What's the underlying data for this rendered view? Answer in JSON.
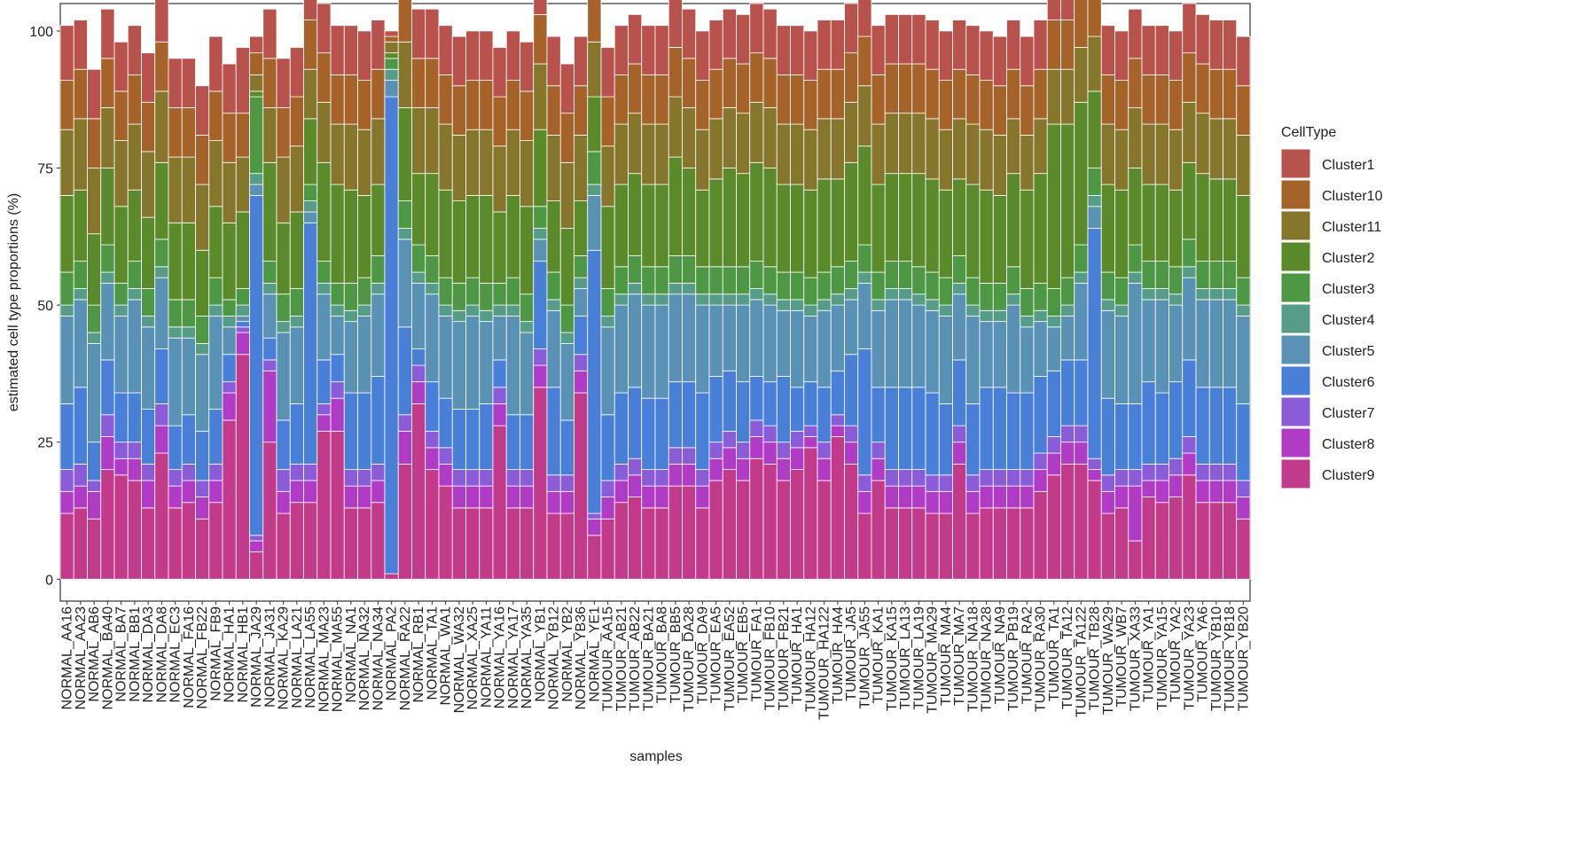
{
  "chart_data": {
    "type": "stacked-bar",
    "xlabel": "samples",
    "ylabel": "estimated cell type proportions (%)",
    "legend_title": "CellType",
    "legend": "right",
    "ylim": [
      -4,
      105
    ],
    "yticks": [
      0,
      25,
      50,
      75,
      100
    ],
    "categories": [
      "NORMAL_AA16",
      "NORMAL_AA23",
      "NORMAL_AB6",
      "NORMAL_BA40",
      "NORMAL_BA7",
      "NORMAL_BB1",
      "NORMAL_DA3",
      "NORMAL_DA8",
      "NORMAL_EC3",
      "NORMAL_FA16",
      "NORMAL_FB22",
      "NORMAL_FB9",
      "NORMAL_HA1",
      "NORMAL_HB1",
      "NORMAL_JA29",
      "NORMAL_JA31",
      "NORMAL_KA29",
      "NORMAL_LA21",
      "NORMAL_LA55",
      "NORMAL_MA23",
      "NORMAL_MA55",
      "NORMAL_NA1",
      "NORMAL_NA32",
      "NORMAL_NA34",
      "NORMAL_PA2",
      "NORMAL_RA22",
      "NORMAL_RB1",
      "NORMAL_TA1",
      "NORMAL_WA1",
      "NORMAL_WA32",
      "NORMAL_XA25",
      "NORMAL_YA11",
      "NORMAL_YA16",
      "NORMAL_YA17",
      "NORMAL_YA35",
      "NORMAL_YB1",
      "NORMAL_YB12",
      "NORMAL_YB2",
      "NORMAL_YB36",
      "NORMAL_YE1",
      "TUMOUR_AA15",
      "TUMOUR_AB21",
      "TUMOUR_AB22",
      "TUMOUR_BA21",
      "TUMOUR_BA8",
      "TUMOUR_BB5",
      "TUMOUR_DA28",
      "TUMOUR_DA9",
      "TUMOUR_EA5",
      "TUMOUR_EA52",
      "TUMOUR_EB5",
      "TUMOUR_FA1",
      "TUMOUR_FB10",
      "TUMOUR_FB21",
      "TUMOUR_HA1",
      "TUMOUR_HA12",
      "TUMOUR_HA122",
      "TUMOUR_HA4",
      "TUMOUR_JA5",
      "TUMOUR_JA55",
      "TUMOUR_KA1",
      "TUMOUR_KA15",
      "TUMOUR_LA13",
      "TUMOUR_LA19",
      "TUMOUR_MA29",
      "TUMOUR_MA4",
      "TUMOUR_MA7",
      "TUMOUR_NA18",
      "TUMOUR_NA28",
      "TUMOUR_NA9",
      "TUMOUR_PB19",
      "TUMOUR_RA2",
      "TUMOUR_RA30",
      "TUMOUR_TA1",
      "TUMOUR_TA12",
      "TUMOUR_TA122",
      "TUMOUR_TB28",
      "TUMOUR_WA29",
      "TUMOUR_WB7",
      "TUMOUR_XA33",
      "TUMOUR_YA1",
      "TUMOUR_YA15",
      "TUMOUR_YA2",
      "TUMOUR_YA23",
      "TUMOUR_YA6",
      "TUMOUR_YB10",
      "TUMOUR_YB18",
      "TUMOUR_YB20"
    ],
    "series": [
      {
        "name": "Cluster1",
        "color": "#b8524c",
        "values": [
          10,
          9,
          9,
          9,
          9,
          9,
          9,
          9,
          9,
          9,
          9,
          10,
          9,
          12,
          3,
          9,
          9,
          9,
          9,
          9,
          9,
          9,
          9,
          9,
          1,
          9,
          9,
          9,
          9,
          9,
          9,
          9,
          9,
          9,
          9,
          9,
          9,
          9,
          9,
          9,
          9,
          9,
          9,
          9,
          9,
          9,
          9,
          9,
          9,
          9,
          9,
          9,
          9,
          9,
          9,
          9,
          9,
          9,
          9,
          9,
          9,
          9,
          9,
          9,
          9,
          9,
          9,
          9,
          9,
          9,
          9,
          9,
          9,
          9,
          9,
          9,
          9,
          9,
          9,
          9,
          9,
          9,
          9,
          9,
          9,
          9,
          9,
          9
        ]
      },
      {
        "name": "Cluster10",
        "color": "#a5632a",
        "values": [
          9,
          9,
          9,
          9,
          9,
          9,
          9,
          9,
          9,
          9,
          9,
          9,
          9,
          8,
          4,
          9,
          9,
          9,
          9,
          9,
          9,
          9,
          9,
          9,
          1,
          9,
          9,
          9,
          9,
          9,
          9,
          9,
          9,
          9,
          9,
          9,
          9,
          9,
          9,
          9,
          9,
          9,
          9,
          9,
          9,
          9,
          9,
          9,
          9,
          9,
          9,
          9,
          9,
          9,
          9,
          9,
          9,
          9,
          9,
          9,
          9,
          9,
          9,
          9,
          9,
          9,
          9,
          9,
          9,
          9,
          9,
          9,
          9,
          9,
          9,
          9,
          9,
          9,
          9,
          9,
          9,
          9,
          9,
          9,
          9,
          9,
          9,
          9
        ]
      },
      {
        "name": "Cluster11",
        "color": "#86762c",
        "values": [
          12,
          13,
          12,
          11,
          12,
          12,
          12,
          13,
          12,
          12,
          12,
          12,
          11,
          10,
          3,
          10,
          12,
          12,
          9,
          11,
          11,
          12,
          12,
          12,
          2,
          12,
          12,
          12,
          12,
          12,
          12,
          12,
          12,
          12,
          12,
          12,
          12,
          12,
          12,
          10,
          11,
          11,
          11,
          11,
          11,
          11,
          11,
          11,
          11,
          11,
          11,
          11,
          11,
          11,
          11,
          11,
          11,
          11,
          11,
          11,
          11,
          11,
          11,
          11,
          11,
          11,
          11,
          11,
          11,
          11,
          10,
          10,
          10,
          10,
          10,
          10,
          10,
          11,
          11,
          11,
          11,
          11,
          11,
          11,
          11,
          11,
          11,
          11
        ]
      },
      {
        "name": "Cluster2",
        "color": "#5a8a2a",
        "values": [
          14,
          13,
          13,
          14,
          14,
          13,
          13,
          14,
          14,
          14,
          12,
          13,
          14,
          14,
          1,
          18,
          13,
          14,
          12,
          18,
          18,
          17,
          15,
          13,
          1,
          17,
          13,
          15,
          16,
          15,
          15,
          16,
          13,
          15,
          16,
          14,
          13,
          14,
          10,
          10,
          15,
          15,
          15,
          15,
          15,
          18,
          16,
          14,
          16,
          18,
          17,
          18,
          18,
          16,
          16,
          16,
          17,
          16,
          18,
          18,
          16,
          16,
          16,
          17,
          17,
          16,
          14,
          17,
          17,
          16,
          17,
          18,
          20,
          30,
          28,
          26,
          14,
          16,
          16,
          14,
          14,
          14,
          14,
          14,
          16,
          15,
          15,
          15
        ]
      },
      {
        "name": "Cluster3",
        "color": "#4e9845",
        "values": [
          6,
          5,
          5,
          5,
          4,
          5,
          5,
          5,
          5,
          5,
          5,
          5,
          3,
          3,
          14,
          4,
          5,
          5,
          3,
          4,
          4,
          5,
          5,
          5,
          2,
          5,
          5,
          5,
          5,
          5,
          5,
          5,
          4,
          5,
          5,
          4,
          5,
          5,
          4,
          6,
          5,
          5,
          5,
          5,
          5,
          5,
          5,
          5,
          5,
          5,
          5,
          5,
          5,
          5,
          5,
          5,
          5,
          5,
          5,
          5,
          5,
          5,
          5,
          5,
          5,
          5,
          5,
          5,
          5,
          5,
          5,
          5,
          5,
          5,
          5,
          5,
          5,
          5,
          5,
          5,
          5,
          5,
          5,
          5,
          5,
          5,
          5,
          5
        ]
      },
      {
        "name": "Cluster4",
        "color": "#579c88",
        "values": [
          2,
          2,
          2,
          2,
          2,
          2,
          2,
          2,
          2,
          2,
          2,
          2,
          2,
          2,
          2,
          2,
          2,
          2,
          2,
          2,
          2,
          2,
          2,
          2,
          2,
          2,
          2,
          2,
          2,
          2,
          2,
          2,
          2,
          2,
          2,
          2,
          2,
          2,
          2,
          2,
          2,
          2,
          2,
          2,
          2,
          2,
          2,
          2,
          2,
          2,
          2,
          2,
          2,
          2,
          2,
          2,
          2,
          2,
          2,
          2,
          2,
          2,
          2,
          2,
          2,
          2,
          2,
          2,
          2,
          2,
          2,
          2,
          2,
          2,
          2,
          2,
          2,
          2,
          2,
          2,
          2,
          2,
          2,
          2,
          2,
          2,
          2,
          2
        ]
      },
      {
        "name": "Cluster5",
        "color": "#5a92b5",
        "values": [
          16,
          16,
          18,
          14,
          14,
          17,
          15,
          13,
          16,
          14,
          14,
          17,
          5,
          1,
          2,
          8,
          16,
          14,
          2,
          12,
          7,
          13,
          14,
          15,
          3,
          16,
          12,
          16,
          15,
          16,
          17,
          15,
          8,
          18,
          15,
          4,
          14,
          14,
          5,
          10,
          16,
          16,
          17,
          17,
          17,
          16,
          16,
          16,
          13,
          12,
          14,
          14,
          14,
          12,
          14,
          12,
          14,
          12,
          10,
          12,
          14,
          16,
          16,
          15,
          15,
          16,
          12,
          16,
          12,
          12,
          16,
          12,
          10,
          8,
          8,
          14,
          4,
          16,
          16,
          22,
          15,
          17,
          14,
          15,
          16,
          16,
          16,
          16
        ]
      },
      {
        "name": "Cluster6",
        "color": "#4a7fd8",
        "values": [
          12,
          14,
          7,
          10,
          9,
          9,
          10,
          10,
          8,
          9,
          9,
          10,
          5,
          1,
          62,
          4,
          9,
          11,
          44,
          8,
          5,
          14,
          14,
          16,
          87,
          16,
          3,
          9,
          9,
          11,
          11,
          12,
          5,
          10,
          10,
          16,
          16,
          10,
          7,
          48,
          12,
          13,
          13,
          13,
          13,
          12,
          12,
          14,
          12,
          11,
          11,
          8,
          8,
          12,
          8,
          8,
          10,
          8,
          13,
          23,
          10,
          15,
          15,
          15,
          15,
          13,
          12,
          13,
          15,
          15,
          14,
          14,
          14,
          12,
          12,
          12,
          42,
          14,
          12,
          12,
          15,
          13,
          14,
          14,
          14,
          14,
          14,
          14
        ]
      },
      {
        "name": "Cluster7",
        "color": "#8a5cd8",
        "values": [
          4,
          4,
          2,
          4,
          3,
          3,
          3,
          4,
          3,
          3,
          3,
          3,
          2,
          1,
          1,
          2,
          4,
          3,
          3,
          2,
          3,
          3,
          3,
          3,
          0,
          3,
          3,
          3,
          3,
          3,
          3,
          3,
          3,
          3,
          3,
          3,
          3,
          3,
          3,
          1,
          3,
          3,
          3,
          3,
          3,
          3,
          3,
          3,
          3,
          3,
          3,
          3,
          3,
          3,
          3,
          2,
          3,
          2,
          3,
          3,
          3,
          3,
          3,
          3,
          3,
          3,
          3,
          3,
          3,
          3,
          3,
          3,
          3,
          3,
          3,
          3,
          2,
          3,
          3,
          3,
          3,
          3,
          3,
          3,
          3,
          3,
          3,
          3
        ]
      },
      {
        "name": "Cluster8",
        "color": "#b03cc6",
        "values": [
          4,
          4,
          5,
          6,
          3,
          4,
          5,
          5,
          4,
          4,
          4,
          4,
          5,
          4,
          2,
          13,
          4,
          4,
          4,
          3,
          6,
          4,
          4,
          4,
          0,
          6,
          4,
          4,
          4,
          4,
          4,
          4,
          4,
          4,
          4,
          4,
          4,
          4,
          4,
          3,
          4,
          4,
          4,
          4,
          4,
          4,
          4,
          4,
          4,
          4,
          4,
          4,
          4,
          4,
          4,
          2,
          4,
          2,
          4,
          4,
          4,
          4,
          4,
          4,
          4,
          4,
          4,
          4,
          4,
          4,
          4,
          4,
          4,
          4,
          4,
          4,
          2,
          4,
          4,
          10,
          3,
          4,
          4,
          4,
          4,
          4,
          4,
          4
        ]
      },
      {
        "name": "Cluster9",
        "color": "#c23a8a",
        "values": [
          12,
          13,
          11,
          20,
          19,
          18,
          13,
          23,
          13,
          14,
          11,
          14,
          29,
          41,
          5,
          25,
          12,
          14,
          14,
          27,
          27,
          13,
          13,
          14,
          1,
          21,
          32,
          20,
          17,
          13,
          13,
          13,
          28,
          13,
          13,
          35,
          12,
          12,
          34,
          8,
          11,
          14,
          15,
          13,
          13,
          17,
          17,
          13,
          18,
          20,
          18,
          22,
          21,
          18,
          20,
          24,
          18,
          26,
          21,
          12,
          18,
          13,
          13,
          13,
          12,
          12,
          21,
          12,
          13,
          13,
          13,
          13,
          16,
          19,
          21,
          21,
          18,
          12,
          13,
          7,
          15,
          14,
          15,
          19,
          14,
          14,
          14,
          11
        ]
      }
    ]
  }
}
